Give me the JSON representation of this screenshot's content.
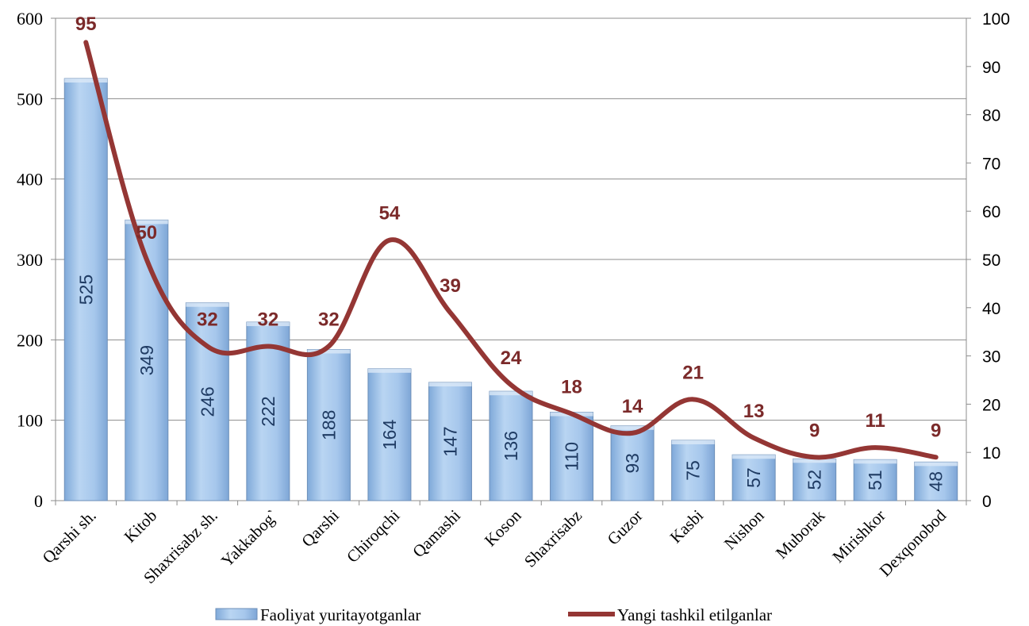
{
  "chart_data": {
    "type": "bar",
    "categories": [
      "Qarshi sh.",
      "Kitob",
      "Shaxrisabz sh.",
      "Yakkabog`",
      "Qarshi",
      "Chiroqchi",
      "Qamashi",
      "Koson",
      "Shaxrisabz",
      "Guzor",
      "Kasbi",
      "Nishon",
      "Muborak",
      "Mirishkor",
      "Dexqonobod"
    ],
    "series": [
      {
        "name": "Faoliyat yuritayotganlar",
        "type": "bar",
        "axis": "left",
        "color": "#9dc3ea",
        "values": [
          525,
          349,
          246,
          222,
          188,
          164,
          147,
          136,
          110,
          93,
          75,
          57,
          52,
          51,
          48
        ]
      },
      {
        "name": "Yangi tashkil etilganlar",
        "type": "line",
        "axis": "right",
        "color": "#943634",
        "values": [
          95,
          50,
          32,
          32,
          32,
          54,
          39,
          24,
          18,
          14,
          21,
          13,
          9,
          11,
          9
        ]
      }
    ],
    "y_left": {
      "min": 0,
      "max": 600,
      "ticks": [
        0,
        100,
        200,
        300,
        400,
        500,
        600
      ]
    },
    "y_right": {
      "min": 0,
      "max": 100,
      "ticks": [
        0,
        10,
        20,
        30,
        40,
        50,
        60,
        70,
        80,
        90,
        100
      ]
    },
    "grid": true,
    "legend_position": "bottom"
  }
}
